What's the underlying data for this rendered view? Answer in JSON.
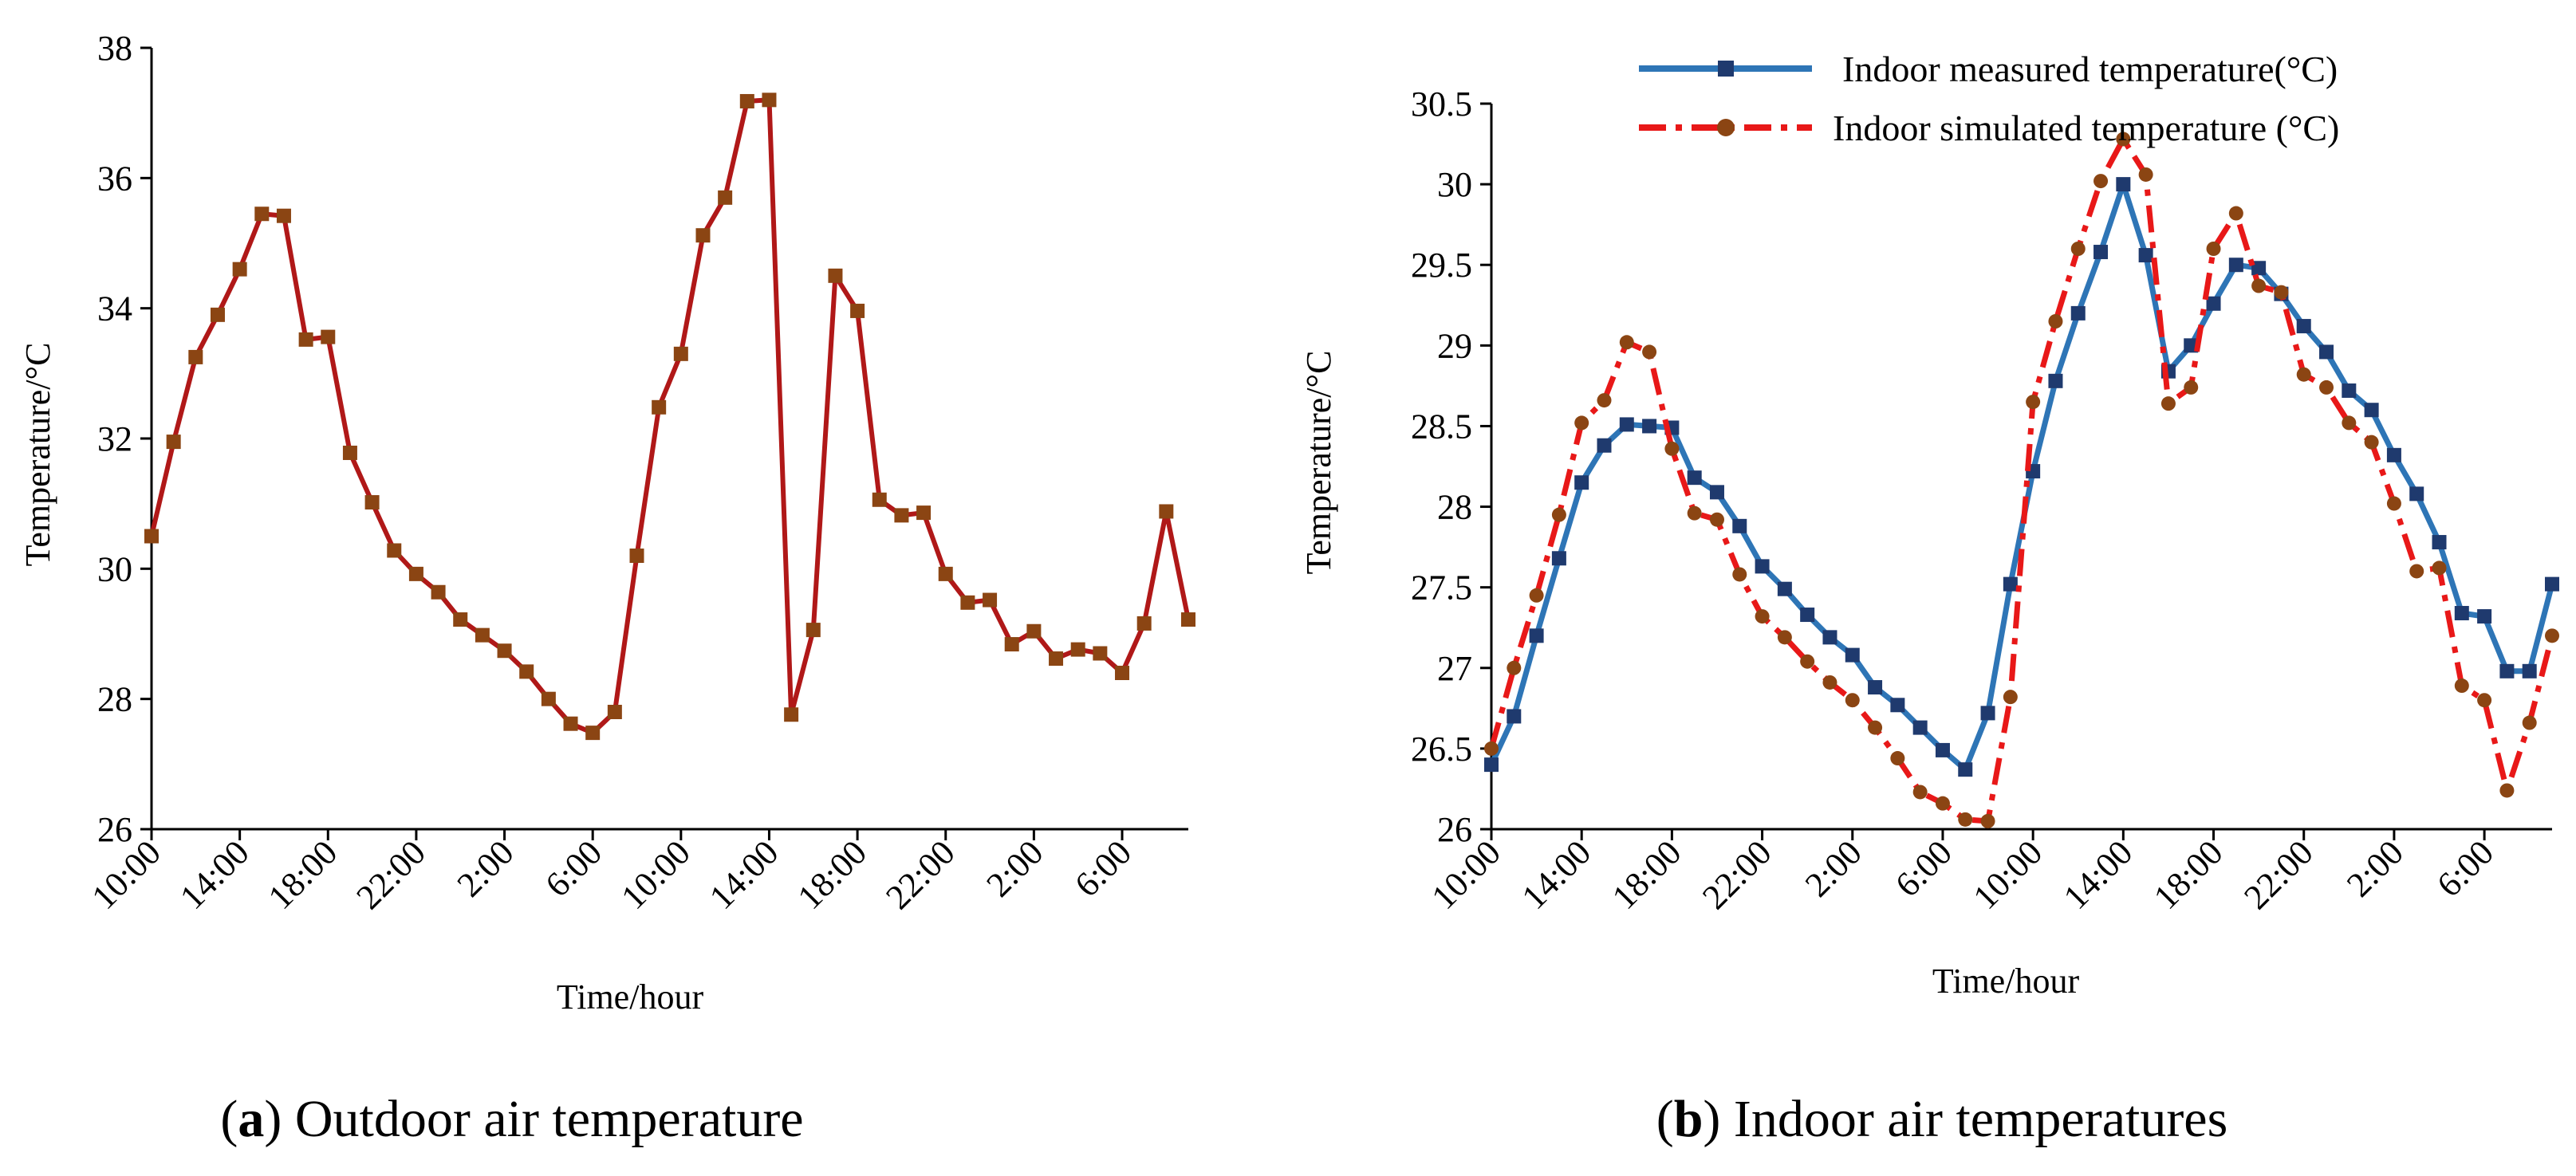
{
  "chart_data": [
    {
      "type": "line",
      "xlabel": "Time/hour",
      "ylabel": "Temperature/°C",
      "ylim": [
        26,
        38
      ],
      "yticks": [
        "26",
        "28",
        "30",
        "32",
        "34",
        "36",
        "38"
      ],
      "xticks": [
        "10:00",
        "14:00",
        "18:00",
        "22:00",
        "2:00",
        "6:00",
        "10:00",
        "14:00",
        "18:00",
        "22:00",
        "2:00",
        "6:00"
      ],
      "caption": {
        "letter": "a",
        "text": " Outdoor air temperature"
      },
      "series": [
        {
          "name": "Outdoor air temperature",
          "color": "#B01818",
          "marker_color": "#8B4513",
          "values": [
            30.5,
            31.95,
            33.25,
            33.9,
            34.6,
            35.45,
            35.42,
            33.52,
            33.56,
            31.78,
            31.02,
            30.28,
            29.92,
            29.64,
            29.22,
            28.98,
            28.74,
            28.42,
            28.0,
            27.62,
            27.48,
            27.8,
            30.2,
            32.48,
            33.3,
            35.12,
            35.7,
            37.18,
            37.2,
            27.76,
            29.06,
            34.5,
            33.96,
            31.06,
            30.82,
            30.86,
            29.92,
            29.48,
            29.52,
            28.84,
            29.04,
            28.62,
            28.76,
            28.7,
            28.4,
            29.16,
            30.88,
            29.22
          ]
        }
      ]
    },
    {
      "type": "line",
      "xlabel": "Time/hour",
      "ylabel": "Temperature/°C",
      "ylim": [
        26,
        30.5
      ],
      "yticks": [
        "26",
        "26.5",
        "27",
        "27.5",
        "28",
        "28.5",
        "29",
        "29.5",
        "30",
        "30.5"
      ],
      "xticks": [
        "10:00",
        "14:00",
        "18:00",
        "22:00",
        "2:00",
        "6:00",
        "10:00",
        "14:00",
        "18:00",
        "22:00",
        "2:00",
        "6:00"
      ],
      "caption": {
        "letter": "b",
        "text": " Indoor air temperatures"
      },
      "series": [
        {
          "name": "Indoor measured temperature(°C)",
          "color": "#2E75B6",
          "marker_color": "#1F3A6E",
          "values": [
            26.4,
            26.7,
            27.2,
            27.68,
            28.15,
            28.38,
            28.51,
            28.5,
            28.49,
            28.18,
            28.09,
            27.88,
            27.63,
            27.49,
            27.33,
            27.19,
            27.08,
            26.88,
            26.77,
            26.63,
            26.49,
            26.37,
            26.72,
            27.52,
            28.22,
            28.78,
            29.2,
            29.58,
            30.0,
            29.56,
            28.84,
            29.0,
            29.26,
            29.5,
            29.48,
            29.32,
            29.12,
            28.96,
            28.72,
            28.6,
            28.32,
            28.08,
            27.78,
            27.34,
            27.32,
            26.98,
            26.98,
            27.52
          ]
        },
        {
          "name": "Indoor simulated temperature (°C)",
          "color": "#E81818",
          "marker_color": "#8B4513",
          "values": [
            26.5,
            27.0,
            27.45,
            27.95,
            28.52,
            28.66,
            29.02,
            28.96,
            28.36,
            27.96,
            27.92,
            27.58,
            27.32,
            27.19,
            27.04,
            26.91,
            26.8,
            26.63,
            26.44,
            26.23,
            26.16,
            26.06,
            26.05,
            26.82,
            28.65,
            29.15,
            29.6,
            30.02,
            30.28,
            30.06,
            28.64,
            28.74,
            29.6,
            29.82,
            29.37,
            29.33,
            28.82,
            28.74,
            28.52,
            28.4,
            28.02,
            27.6,
            27.62,
            26.89,
            26.8,
            26.24,
            26.66,
            27.2
          ]
        }
      ]
    }
  ]
}
